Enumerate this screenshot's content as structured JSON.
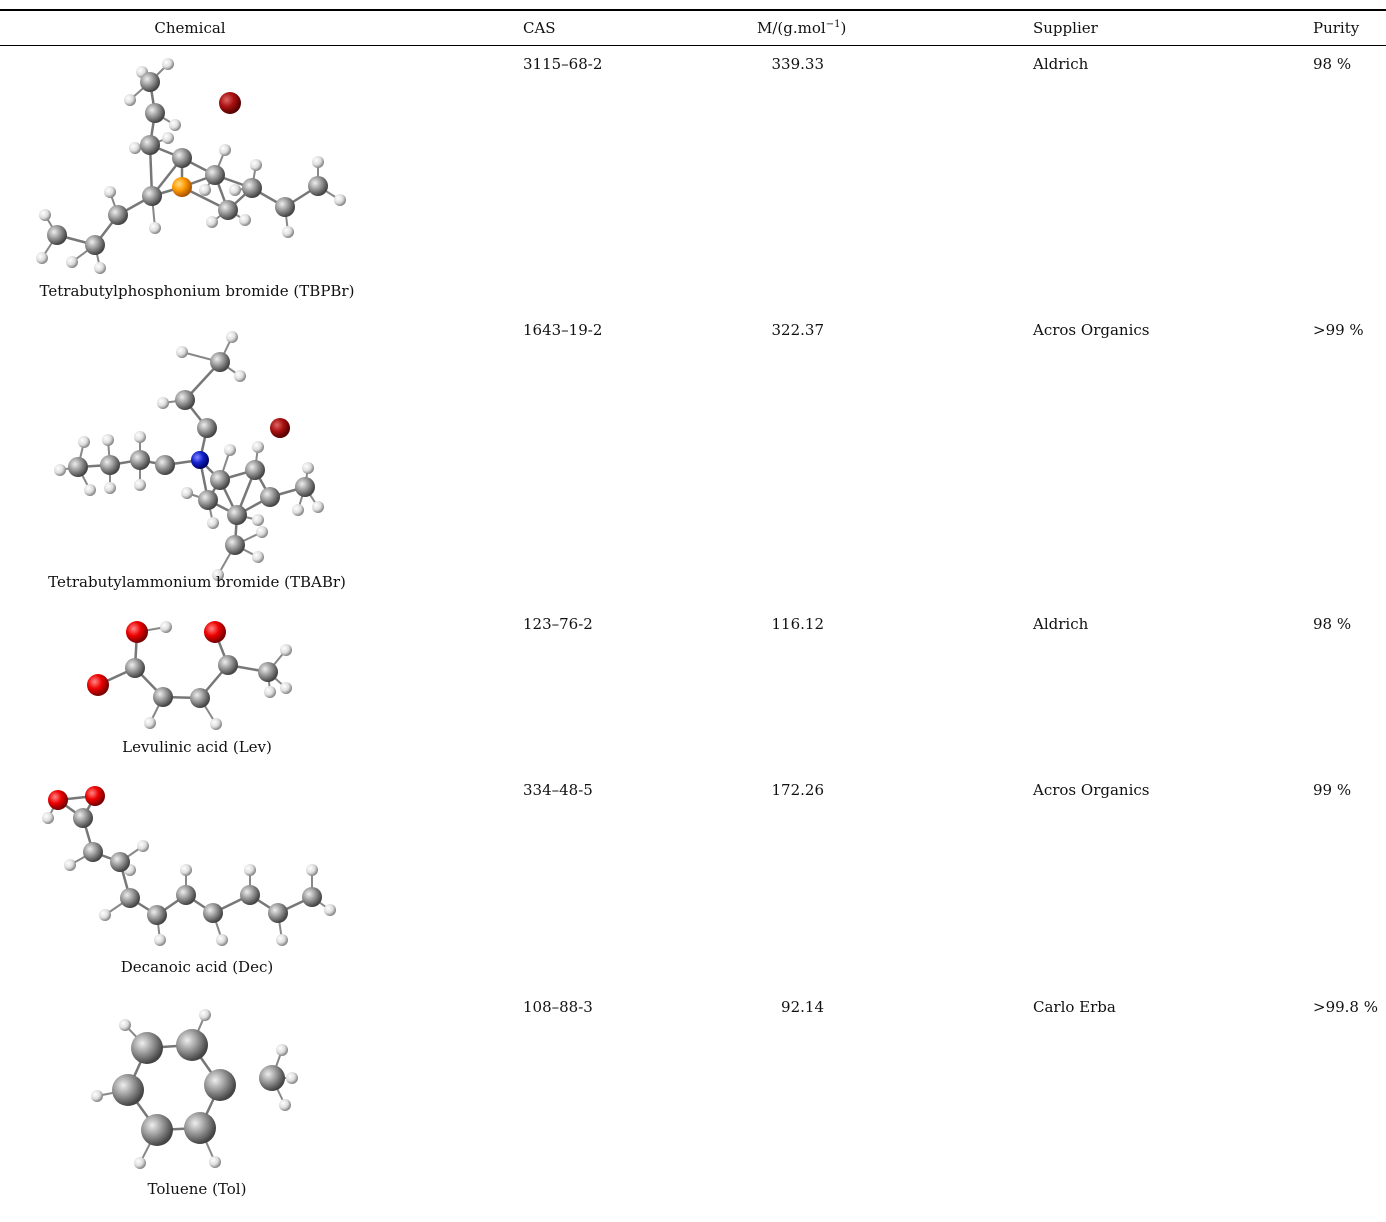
{
  "table": {
    "header": {
      "chemical": "Chemical",
      "cas": "CAS",
      "molar_mass": [
        "M/(g.mol",
        "−1",
        ")"
      ],
      "supplier": "Supplier",
      "purity": "Purity"
    },
    "rows": [
      {
        "chemical": "Tetrabutylphosphonium bromide (TBPBr)",
        "cas": "3115–68-2",
        "molar_mass": 339.33,
        "supplier": "Aldrich",
        "purity": "98 %"
      },
      {
        "chemical": "Tetrabutylammonium bromide (TBABr)",
        "cas": "1643–19-2",
        "molar_mass": 322.37,
        "supplier": "Acros Organics",
        "purity": ">99 %"
      },
      {
        "chemical": "Levulinic acid (Lev)",
        "cas": "123–76-2",
        "molar_mass": 116.12,
        "supplier": "Aldrich",
        "purity": "98 %"
      },
      {
        "chemical": "Decanoic acid (Dec)",
        "cas": "334–48-5",
        "molar_mass": 172.26,
        "supplier": "Acros Organics",
        "purity": "99 %"
      },
      {
        "chemical": "Toluene (Tol)",
        "cas": "108–88-3",
        "molar_mass": 92.14,
        "supplier": "Carlo Erba",
        "purity": ">99.8 %"
      }
    ]
  }
}
